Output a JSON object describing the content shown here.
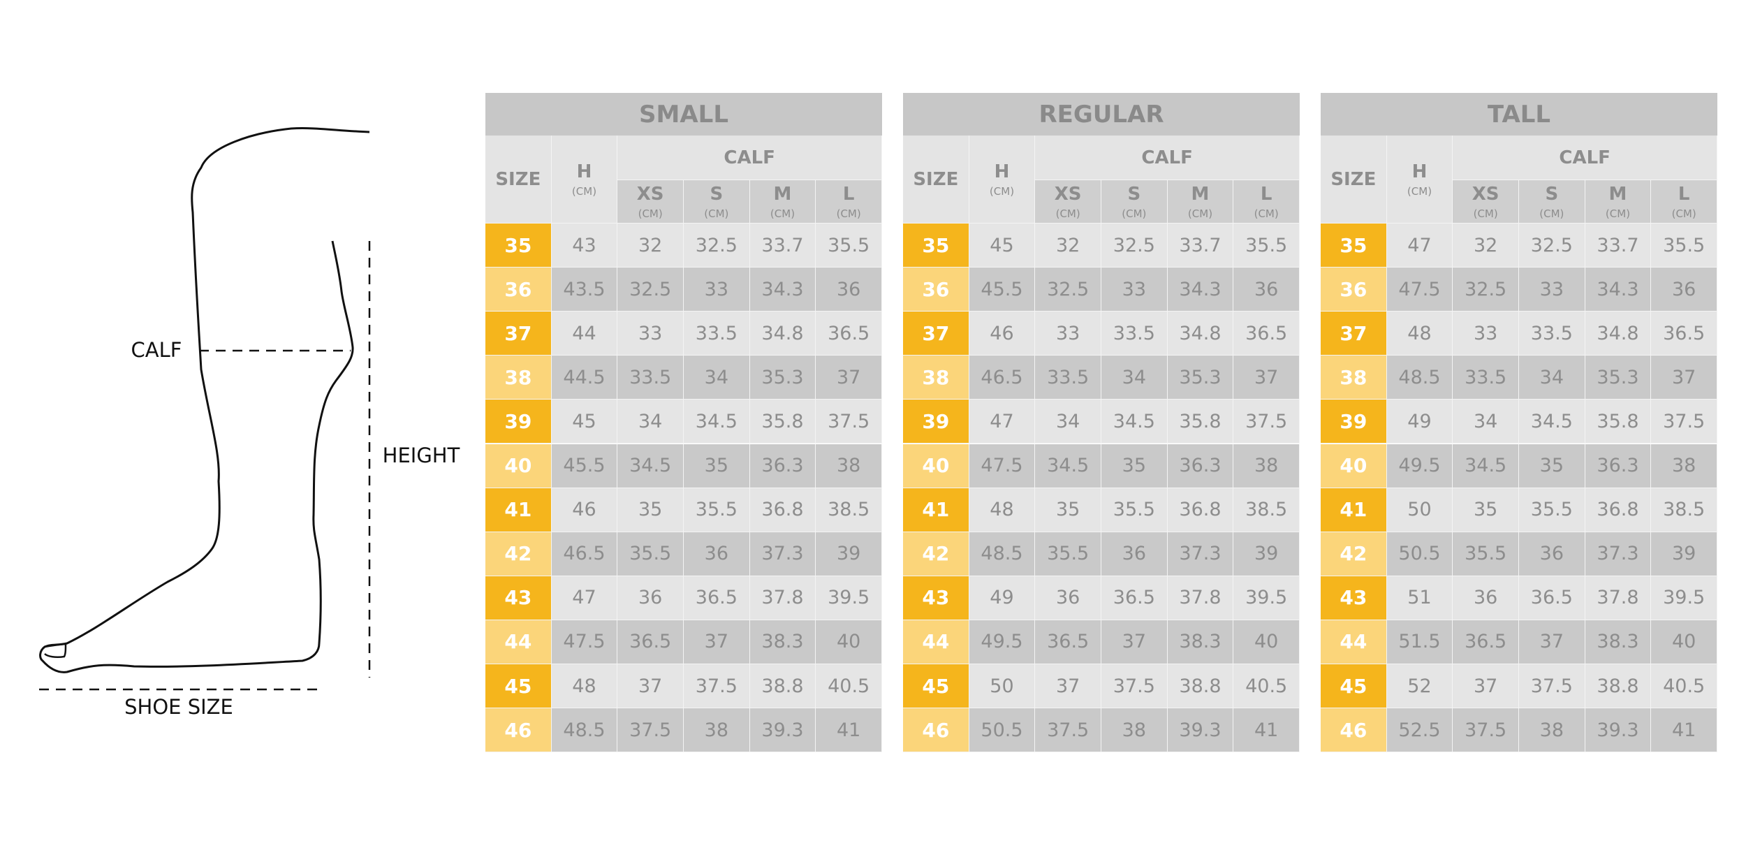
{
  "diagram": {
    "calf": "CALF",
    "height": "HEIGHT",
    "shoe_size": "SHOE SIZE"
  },
  "tables": [
    {
      "title": "SMALL",
      "headers": {
        "size": "SIZE",
        "h": "H",
        "unit": "(CM)",
        "calf": "CALF",
        "calf_sizes": [
          "XS",
          "S",
          "M",
          "L"
        ]
      },
      "rows": [
        [
          35,
          43,
          32,
          32.5,
          33.7,
          35.5
        ],
        [
          36,
          43.5,
          32.5,
          33,
          34.3,
          36
        ],
        [
          37,
          44,
          33,
          33.5,
          34.8,
          36.5
        ],
        [
          38,
          44.5,
          33.5,
          34,
          35.3,
          37
        ],
        [
          39,
          45,
          34,
          34.5,
          35.8,
          37.5
        ],
        [
          40,
          45.5,
          34.5,
          35,
          36.3,
          38
        ],
        [
          41,
          46,
          35,
          35.5,
          36.8,
          38.5
        ],
        [
          42,
          46.5,
          35.5,
          36,
          37.3,
          39
        ],
        [
          43,
          47,
          36,
          36.5,
          37.8,
          39.5
        ],
        [
          44,
          47.5,
          36.5,
          37,
          38.3,
          40
        ],
        [
          45,
          48,
          37,
          37.5,
          38.8,
          40.5
        ],
        [
          46,
          48.5,
          37.5,
          38,
          39.3,
          41
        ]
      ]
    },
    {
      "title": "REGULAR",
      "headers": {
        "size": "SIZE",
        "h": "H",
        "unit": "(CM)",
        "calf": "CALF",
        "calf_sizes": [
          "XS",
          "S",
          "M",
          "L"
        ]
      },
      "rows": [
        [
          35,
          45,
          32,
          32.5,
          33.7,
          35.5
        ],
        [
          36,
          45.5,
          32.5,
          33,
          34.3,
          36
        ],
        [
          37,
          46,
          33,
          33.5,
          34.8,
          36.5
        ],
        [
          38,
          46.5,
          33.5,
          34,
          35.3,
          37
        ],
        [
          39,
          47,
          34,
          34.5,
          35.8,
          37.5
        ],
        [
          40,
          47.5,
          34.5,
          35,
          36.3,
          38
        ],
        [
          41,
          48,
          35,
          35.5,
          36.8,
          38.5
        ],
        [
          42,
          48.5,
          35.5,
          36,
          37.3,
          39
        ],
        [
          43,
          49,
          36,
          36.5,
          37.8,
          39.5
        ],
        [
          44,
          49.5,
          36.5,
          37,
          38.3,
          40
        ],
        [
          45,
          50,
          37,
          37.5,
          38.8,
          40.5
        ],
        [
          46,
          50.5,
          37.5,
          38,
          39.3,
          41
        ]
      ]
    },
    {
      "title": "TALL",
      "headers": {
        "size": "SIZE",
        "h": "H",
        "unit": "(CM)",
        "calf": "CALF",
        "calf_sizes": [
          "XS",
          "S",
          "M",
          "L"
        ]
      },
      "rows": [
        [
          35,
          47,
          32,
          32.5,
          33.7,
          35.5
        ],
        [
          36,
          47.5,
          32.5,
          33,
          34.3,
          36
        ],
        [
          37,
          48,
          33,
          33.5,
          34.8,
          36.5
        ],
        [
          38,
          48.5,
          33.5,
          34,
          35.3,
          37
        ],
        [
          39,
          49,
          34,
          34.5,
          35.8,
          37.5
        ],
        [
          40,
          49.5,
          34.5,
          35,
          36.3,
          38
        ],
        [
          41,
          50,
          35,
          35.5,
          36.8,
          38.5
        ],
        [
          42,
          50.5,
          35.5,
          36,
          37.3,
          39
        ],
        [
          43,
          51,
          36,
          36.5,
          37.8,
          39.5
        ],
        [
          44,
          51.5,
          36.5,
          37,
          38.3,
          40
        ],
        [
          45,
          52,
          37,
          37.5,
          38.8,
          40.5
        ],
        [
          46,
          52.5,
          37.5,
          38,
          39.3,
          41
        ]
      ]
    }
  ]
}
